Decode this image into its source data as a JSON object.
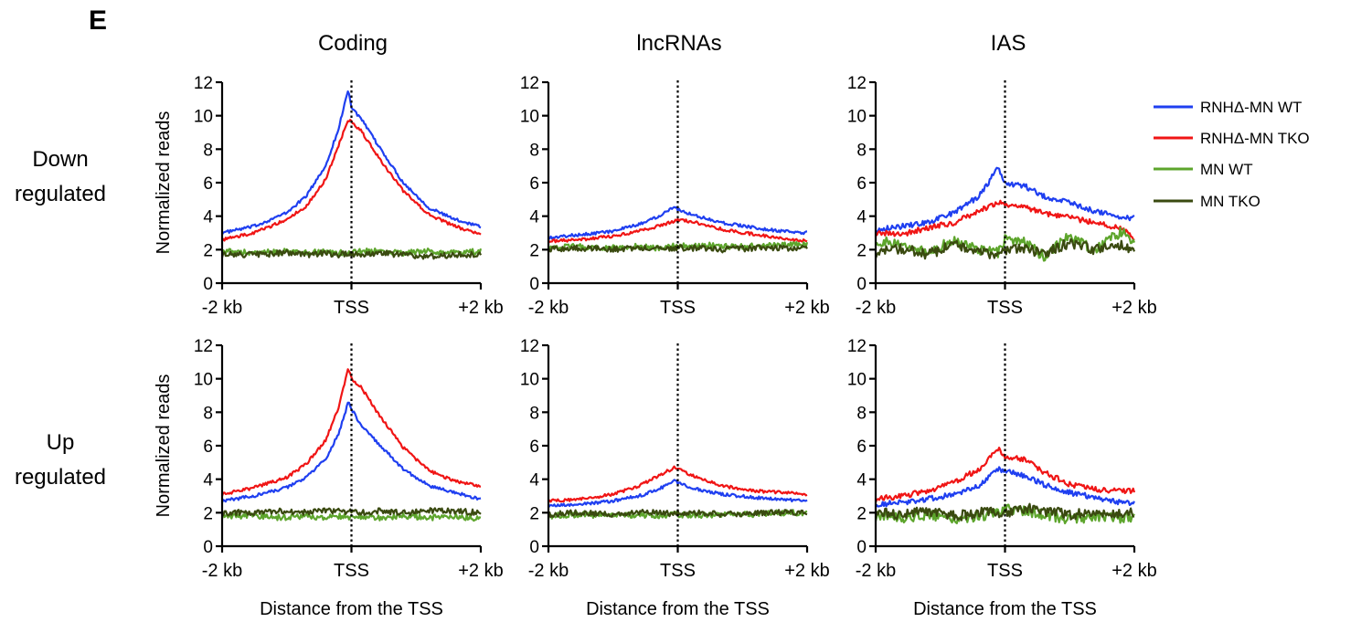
{
  "panel_letter": "E",
  "legend": [
    {
      "label": "RNHΔ-MN WT",
      "color": "#1f3ff0"
    },
    {
      "label": "RNHΔ-MN TKO",
      "color": "#f01515"
    },
    {
      "label": "MN WT",
      "color": "#5da52c"
    },
    {
      "label": "MN TKO",
      "color": "#3a4a10"
    }
  ],
  "column_titles": [
    "Coding",
    "lncRNAs",
    "IAS"
  ],
  "row_titles": [
    {
      "line1": "Down",
      "line2": "regulated"
    },
    {
      "line1": "Up",
      "line2": "regulated"
    }
  ],
  "chart_data": [
    {
      "type": "line",
      "row": "Down regulated",
      "column": "Coding",
      "ylabel": "Normalized reads",
      "xlabel": "",
      "ylim": [
        0,
        12
      ],
      "yticks": [
        "0",
        "2",
        "4",
        "6",
        "8",
        "10",
        "12"
      ],
      "xticks": [
        "-2 kb",
        "TSS",
        "+2 kb"
      ],
      "x": [
        -2,
        -1.5,
        -1,
        -0.7,
        -0.4,
        -0.2,
        -0.05,
        0,
        0.15,
        0.4,
        0.8,
        1.2,
        1.6,
        2
      ],
      "series": [
        {
          "name": "RNHΔ-MN WT",
          "color": "#1f3ff0",
          "values": [
            3.0,
            3.4,
            4.2,
            5.2,
            7.0,
            9.2,
            11.6,
            10.5,
            9.8,
            8.3,
            6.0,
            4.5,
            3.8,
            3.4
          ]
        },
        {
          "name": "RNHΔ-MN TKO",
          "color": "#f01515",
          "values": [
            2.6,
            3.0,
            3.8,
            4.6,
            6.2,
            8.2,
            9.8,
            9.6,
            9.1,
            7.6,
            5.5,
            4.1,
            3.4,
            2.9
          ]
        },
        {
          "name": "MN WT",
          "color": "#5da52c",
          "values": [
            1.9,
            1.8,
            1.9,
            1.8,
            1.9,
            1.8,
            1.9,
            1.8,
            1.9,
            1.9,
            1.8,
            1.9,
            1.8,
            1.9
          ]
        },
        {
          "name": "MN TKO",
          "color": "#3a4a10",
          "values": [
            1.7,
            1.7,
            1.8,
            1.7,
            1.8,
            1.7,
            1.8,
            1.7,
            1.7,
            1.8,
            1.7,
            1.6,
            1.7,
            1.7
          ]
        }
      ]
    },
    {
      "type": "line",
      "row": "Down regulated",
      "column": "lncRNAs",
      "ylabel": "",
      "xlabel": "",
      "ylim": [
        0,
        12
      ],
      "yticks": [
        "0",
        "2",
        "4",
        "6",
        "8",
        "10",
        "12"
      ],
      "xticks": [
        "-2 kb",
        "TSS",
        "+2 kb"
      ],
      "x": [
        -2,
        -1.5,
        -1,
        -0.6,
        -0.3,
        -0.05,
        0,
        0.3,
        0.7,
        1.2,
        1.6,
        2
      ],
      "series": [
        {
          "name": "RNHΔ-MN WT",
          "color": "#1f3ff0",
          "values": [
            2.7,
            2.9,
            3.1,
            3.5,
            4.0,
            4.6,
            4.4,
            4.0,
            3.6,
            3.3,
            3.1,
            3.0
          ]
        },
        {
          "name": "RNHΔ-MN TKO",
          "color": "#f01515",
          "values": [
            2.5,
            2.6,
            2.8,
            3.1,
            3.4,
            3.7,
            3.8,
            3.6,
            3.2,
            2.9,
            2.7,
            2.5
          ]
        },
        {
          "name": "MN WT",
          "color": "#5da52c",
          "values": [
            2.1,
            2.2,
            2.1,
            2.2,
            2.1,
            2.2,
            2.2,
            2.3,
            2.2,
            2.2,
            2.3,
            2.3
          ]
        },
        {
          "name": "MN TKO",
          "color": "#3a4a10",
          "values": [
            2.0,
            2.1,
            2.0,
            2.1,
            2.1,
            2.0,
            2.1,
            2.1,
            2.0,
            2.1,
            2.1,
            2.1
          ]
        }
      ]
    },
    {
      "type": "line",
      "row": "Down regulated",
      "column": "IAS",
      "ylabel": "",
      "xlabel": "",
      "ylim": [
        0,
        12
      ],
      "yticks": [
        "0",
        "2",
        "4",
        "6",
        "8",
        "10",
        "12"
      ],
      "xticks": [
        "-2 kb",
        "TSS",
        "+2 kb"
      ],
      "x": [
        -2,
        -1.6,
        -1.2,
        -0.8,
        -0.4,
        -0.1,
        0,
        0.3,
        0.6,
        1.0,
        1.4,
        1.8,
        2
      ],
      "series": [
        {
          "name": "RNHΔ-MN WT",
          "color": "#1f3ff0",
          "values": [
            3.2,
            3.4,
            3.6,
            4.2,
            5.2,
            6.9,
            6.0,
            5.8,
            5.2,
            4.8,
            4.3,
            3.9,
            3.9
          ]
        },
        {
          "name": "RNHΔ-MN TKO",
          "color": "#f01515",
          "values": [
            3.0,
            2.9,
            3.3,
            3.6,
            4.3,
            4.8,
            4.7,
            4.5,
            4.2,
            3.9,
            3.6,
            3.3,
            2.6
          ]
        },
        {
          "name": "MN WT",
          "color": "#5da52c",
          "values": [
            2.6,
            2.2,
            1.9,
            2.5,
            2.0,
            1.8,
            2.6,
            2.4,
            1.6,
            2.8,
            2.0,
            3.1,
            2.2
          ]
        },
        {
          "name": "MN TKO",
          "color": "#3a4a10",
          "values": [
            1.8,
            2.1,
            1.7,
            2.3,
            2.0,
            1.6,
            2.0,
            2.1,
            1.8,
            2.4,
            2.0,
            2.3,
            2.0
          ]
        }
      ]
    },
    {
      "type": "line",
      "row": "Up regulated",
      "column": "Coding",
      "ylabel": "Normalized reads",
      "xlabel": "Distance from the TSS",
      "ylim": [
        0,
        12
      ],
      "yticks": [
        "0",
        "2",
        "4",
        "6",
        "8",
        "10",
        "12"
      ],
      "xticks": [
        "-2 kb",
        "TSS",
        "+2 kb"
      ],
      "x": [
        -2,
        -1.5,
        -1,
        -0.7,
        -0.4,
        -0.2,
        -0.05,
        0,
        0.15,
        0.4,
        0.8,
        1.2,
        1.6,
        2
      ],
      "series": [
        {
          "name": "RNHΔ-MN WT",
          "color": "#1f3ff0",
          "values": [
            2.7,
            3.0,
            3.5,
            4.1,
            5.2,
            6.7,
            8.6,
            8.2,
            7.2,
            6.2,
            4.6,
            3.6,
            3.2,
            2.8
          ]
        },
        {
          "name": "RNHΔ-MN TKO",
          "color": "#f01515",
          "values": [
            3.1,
            3.5,
            4.1,
            4.9,
            6.3,
            8.3,
            10.6,
            10.0,
            9.5,
            8.0,
            5.9,
            4.5,
            3.9,
            3.6
          ]
        },
        {
          "name": "MN WT",
          "color": "#5da52c",
          "values": [
            1.8,
            1.8,
            1.7,
            1.8,
            1.7,
            1.8,
            1.7,
            1.8,
            1.8,
            1.7,
            1.8,
            1.7,
            1.8,
            1.6
          ]
        },
        {
          "name": "MN TKO",
          "color": "#3a4a10",
          "values": [
            2.0,
            2.0,
            2.1,
            2.0,
            2.1,
            2.1,
            2.0,
            2.1,
            2.0,
            2.1,
            2.0,
            2.1,
            2.1,
            2.0
          ]
        }
      ]
    },
    {
      "type": "line",
      "row": "Up regulated",
      "column": "lncRNAs",
      "ylabel": "",
      "xlabel": "Distance from the TSS",
      "ylim": [
        0,
        12
      ],
      "yticks": [
        "0",
        "2",
        "4",
        "6",
        "8",
        "10",
        "12"
      ],
      "xticks": [
        "-2 kb",
        "TSS",
        "+2 kb"
      ],
      "x": [
        -2,
        -1.5,
        -1,
        -0.6,
        -0.3,
        -0.05,
        0,
        0.3,
        0.7,
        1.2,
        1.6,
        2
      ],
      "series": [
        {
          "name": "RNHΔ-MN WT",
          "color": "#1f3ff0",
          "values": [
            2.4,
            2.5,
            2.7,
            3.0,
            3.4,
            3.9,
            3.8,
            3.4,
            3.1,
            2.9,
            2.8,
            2.7
          ]
        },
        {
          "name": "RNHΔ-MN TKO",
          "color": "#f01515",
          "values": [
            2.7,
            2.8,
            3.1,
            3.6,
            4.2,
            4.7,
            4.6,
            4.1,
            3.6,
            3.3,
            3.2,
            3.1
          ]
        },
        {
          "name": "MN WT",
          "color": "#5da52c",
          "values": [
            1.8,
            1.9,
            1.8,
            1.9,
            1.8,
            1.9,
            1.9,
            1.8,
            1.9,
            1.9,
            2.0,
            2.0
          ]
        },
        {
          "name": "MN TKO",
          "color": "#3a4a10",
          "values": [
            1.9,
            2.0,
            1.9,
            2.0,
            2.0,
            1.9,
            2.0,
            2.0,
            1.9,
            2.0,
            2.0,
            2.0
          ]
        }
      ]
    },
    {
      "type": "line",
      "row": "Up regulated",
      "column": "IAS",
      "ylabel": "",
      "xlabel": "Distance from the TSS",
      "ylim": [
        0,
        12
      ],
      "yticks": [
        "0",
        "2",
        "4",
        "6",
        "8",
        "10",
        "12"
      ],
      "xticks": [
        "-2 kb",
        "TSS",
        "+2 kb"
      ],
      "x": [
        -2,
        -1.6,
        -1.2,
        -0.8,
        -0.4,
        -0.1,
        0,
        0.3,
        0.6,
        1.0,
        1.4,
        1.8,
        2
      ],
      "series": [
        {
          "name": "RNHΔ-MN WT",
          "color": "#1f3ff0",
          "values": [
            2.5,
            2.6,
            2.8,
            3.1,
            3.6,
            4.6,
            4.5,
            4.2,
            3.7,
            3.2,
            2.9,
            2.6,
            2.6
          ]
        },
        {
          "name": "RNHΔ-MN TKO",
          "color": "#f01515",
          "values": [
            2.8,
            3.0,
            3.3,
            3.8,
            4.6,
            5.9,
            5.3,
            5.2,
            4.4,
            3.7,
            3.4,
            3.3,
            3.3
          ]
        },
        {
          "name": "MN WT",
          "color": "#5da52c",
          "values": [
            1.8,
            1.7,
            1.9,
            1.6,
            1.8,
            2.0,
            2.2,
            2.1,
            1.9,
            1.6,
            1.8,
            1.7,
            1.8
          ]
        },
        {
          "name": "MN TKO",
          "color": "#3a4a10",
          "values": [
            2.0,
            1.9,
            2.1,
            1.8,
            2.0,
            2.0,
            2.0,
            2.3,
            2.1,
            1.9,
            2.0,
            2.0,
            2.0
          ]
        }
      ]
    }
  ]
}
